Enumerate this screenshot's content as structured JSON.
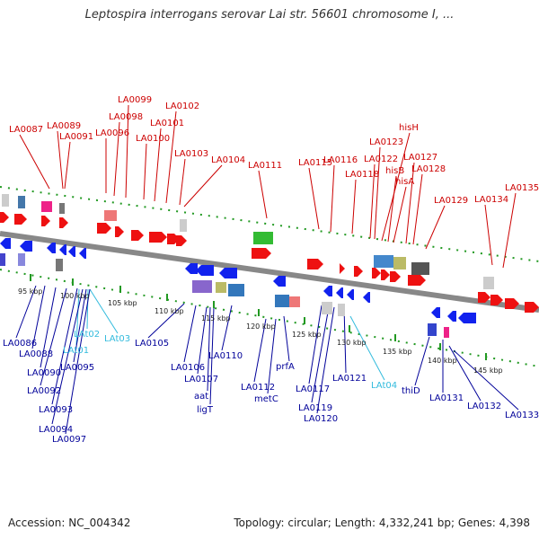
{
  "title": "Leptospira interrogans serovar Lai str. 56601 chromosome I, ...",
  "footer": {
    "accession": "Accession: NC_004342",
    "summary": "Topology: circular; Length: 4,332,241 bp; Genes: 4,398"
  },
  "scale_labels": [
    "95 kbp",
    "100 kbp",
    "105 kbp",
    "110 kbp",
    "115 kbp",
    "120 kbp",
    "125 kbp",
    "130 kbp",
    "135 kbp",
    "140 kbp",
    "145 kbp"
  ],
  "top_labels": [
    "LA0087",
    "LA0089",
    "LA0091",
    "LA0096",
    "LA0098",
    "LA0099",
    "LA0100",
    "LA0101",
    "LA0102",
    "LA0103",
    "LA0104",
    "LA0111",
    "LA0115",
    "LA0116",
    "LA0118",
    "LA0122",
    "LA0123",
    "hisH",
    "hisB",
    "hisA",
    "LA0127",
    "LA0128",
    "LA0129",
    "LA0134",
    "LA0135"
  ],
  "bottom_labels": [
    "LA0086",
    "LA0088",
    "LAt01",
    "LAt02",
    "LAt03",
    "LA0090",
    "LA0092",
    "LA0093",
    "LA0094",
    "LA0095",
    "LA0097",
    "LA0105",
    "LA0106",
    "LA0107",
    "aat",
    "ligT",
    "LA0110",
    "LA0112",
    "metC",
    "prfA",
    "LA0117",
    "LA0119",
    "LA0120",
    "LA0121",
    "LAt04",
    "thiD",
    "LA0131",
    "LA0132",
    "LA0133"
  ],
  "colors": {
    "forward": "#ee1111",
    "reverse": "#1122ee",
    "rna": "#33bbdd",
    "backbone": "#888888",
    "ticks": "#229922"
  }
}
